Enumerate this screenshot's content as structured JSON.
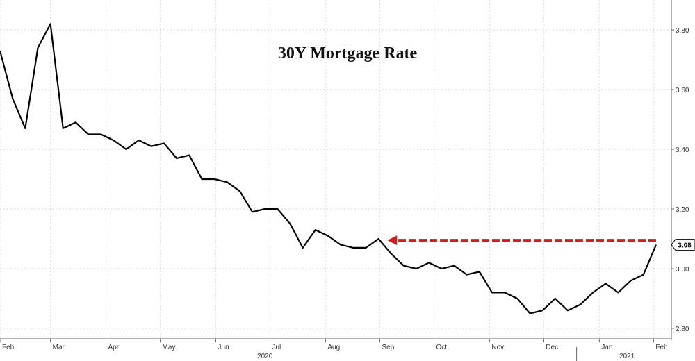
{
  "chart_data": {
    "type": "line",
    "title": "30Y Mortgage Rate",
    "xlabel": "",
    "ylabel": "",
    "ylim": [
      2.74,
      3.86
    ],
    "y_ticks": [
      "2.80",
      "3.00",
      "3.20",
      "3.40",
      "3.60",
      "3.80"
    ],
    "x_ticks": [
      {
        "label": "Feb",
        "t": 0.0
      },
      {
        "label": "Mar",
        "t": 4.0
      },
      {
        "label": "Apr",
        "t": 8.4
      },
      {
        "label": "May",
        "t": 12.7
      },
      {
        "label": "Jun",
        "t": 17.1
      },
      {
        "label": "Jul",
        "t": 21.4
      },
      {
        "label": "Aug",
        "t": 25.8
      },
      {
        "label": "Sep",
        "t": 30.1
      },
      {
        "label": "Oct",
        "t": 34.4
      },
      {
        "label": "Nov",
        "t": 38.8
      },
      {
        "label": "Dec",
        "t": 43.1
      },
      {
        "label": "Jan",
        "t": 47.5
      },
      {
        "label": "Feb",
        "t": 51.8
      }
    ],
    "years": [
      {
        "label": "2020",
        "t": 21.0
      },
      {
        "label": "2021",
        "t": 49.7
      }
    ],
    "year_divider_t": 45.7,
    "series": [
      {
        "color": "#000000",
        "values": [
          3.73,
          3.57,
          3.47,
          3.74,
          3.82,
          3.47,
          3.49,
          3.45,
          3.45,
          3.43,
          3.4,
          3.43,
          3.41,
          3.42,
          3.37,
          3.38,
          3.3,
          3.3,
          3.29,
          3.26,
          3.19,
          3.2,
          3.2,
          3.15,
          3.07,
          3.13,
          3.11,
          3.08,
          3.07,
          3.07,
          3.1,
          3.05,
          3.01,
          3.0,
          3.02,
          3.0,
          3.01,
          2.98,
          2.99,
          2.92,
          2.92,
          2.9,
          2.85,
          2.86,
          2.9,
          2.86,
          2.88,
          2.92,
          2.95,
          2.92,
          2.96,
          2.98,
          3.08
        ]
      }
    ],
    "current_value": "3.08",
    "arrow": {
      "value": 3.095,
      "from_t": 52.0,
      "to_t": 30.7,
      "color": "#d11f1f"
    },
    "grid": true,
    "y_axis_side": "right"
  }
}
